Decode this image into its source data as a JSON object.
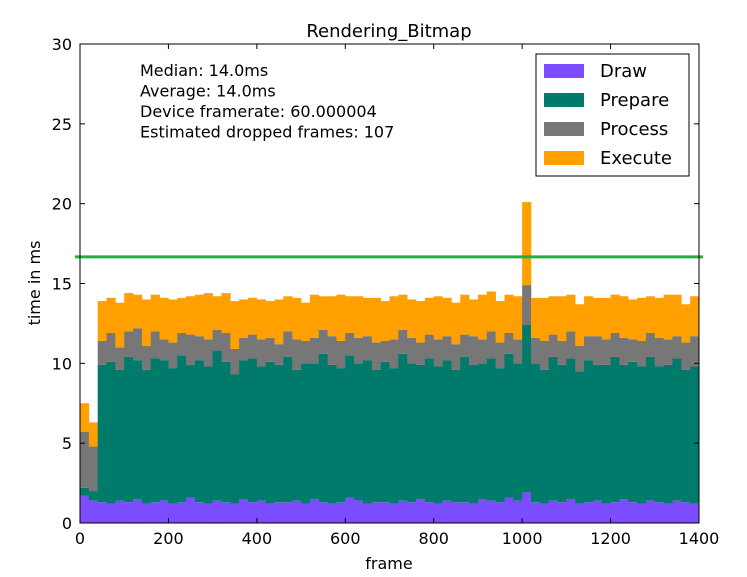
{
  "chart_data": {
    "type": "bar",
    "stacked": true,
    "title": "Rendering_Bitmap",
    "xlabel": "frame",
    "ylabel": "time in ms",
    "xlim": [
      0,
      1400
    ],
    "ylim": [
      0,
      30
    ],
    "xticks": [
      "0",
      "200",
      "400",
      "600",
      "800",
      "1000",
      "1200",
      "1400"
    ],
    "yticks": [
      "0",
      "5",
      "10",
      "15",
      "20",
      "25",
      "30"
    ],
    "grid": false,
    "legend_placement": "top-right",
    "annotations": [
      "Median: 14.0ms",
      "Average: 14.0ms",
      "Device framerate: 60.000004",
      "Estimated dropped frames: 107"
    ],
    "threshold": {
      "value": 16.67,
      "color": "#1fb045"
    },
    "frames": [
      0,
      20,
      40,
      60,
      80,
      100,
      120,
      140,
      160,
      180,
      200,
      220,
      240,
      260,
      280,
      300,
      320,
      340,
      360,
      380,
      400,
      420,
      440,
      460,
      480,
      500,
      520,
      540,
      560,
      580,
      600,
      620,
      640,
      660,
      680,
      700,
      720,
      740,
      760,
      780,
      800,
      820,
      840,
      860,
      880,
      900,
      920,
      940,
      960,
      980,
      1000,
      1020,
      1040,
      1060,
      1080,
      1100,
      1120,
      1140,
      1160,
      1180,
      1200,
      1220,
      1240,
      1260,
      1280,
      1300,
      1320,
      1340,
      1360,
      1380
    ],
    "series": [
      {
        "name": "Draw",
        "color": "#7b4dff",
        "values": [
          1.7,
          1.4,
          1.3,
          1.2,
          1.4,
          1.3,
          1.5,
          1.2,
          1.3,
          1.4,
          1.2,
          1.3,
          1.6,
          1.3,
          1.2,
          1.4,
          1.3,
          1.2,
          1.5,
          1.3,
          1.4,
          1.2,
          1.3,
          1.3,
          1.4,
          1.2,
          1.5,
          1.3,
          1.2,
          1.3,
          1.6,
          1.4,
          1.2,
          1.3,
          1.3,
          1.2,
          1.4,
          1.3,
          1.5,
          1.3,
          1.2,
          1.4,
          1.3,
          1.3,
          1.2,
          1.5,
          1.4,
          1.3,
          1.6,
          1.4,
          1.9,
          1.3,
          1.2,
          1.4,
          1.3,
          1.5,
          1.2,
          1.3,
          1.4,
          1.2,
          1.3,
          1.5,
          1.3,
          1.2,
          1.4,
          1.3,
          1.2,
          1.4,
          1.3,
          1.2
        ]
      },
      {
        "name": "Prepare",
        "color": "#007a6a",
        "values": [
          0.5,
          0.6,
          8.6,
          8.9,
          8.2,
          9.1,
          8.7,
          8.4,
          9.0,
          8.8,
          8.5,
          9.2,
          8.3,
          8.9,
          8.6,
          9.4,
          8.8,
          8.1,
          8.7,
          9.0,
          8.4,
          8.9,
          8.6,
          9.1,
          8.2,
          8.8,
          8.5,
          9.3,
          8.7,
          8.4,
          8.9,
          8.6,
          9.0,
          8.3,
          8.8,
          8.5,
          9.2,
          8.7,
          8.4,
          9.0,
          8.6,
          8.8,
          8.3,
          9.1,
          8.7,
          8.5,
          8.9,
          8.4,
          9.0,
          8.6,
          10.5,
          8.7,
          8.4,
          9.0,
          8.6,
          8.8,
          8.3,
          8.9,
          8.5,
          8.7,
          9.1,
          8.4,
          8.8,
          8.6,
          9.0,
          8.5,
          8.7,
          8.9,
          8.3,
          8.6
        ]
      },
      {
        "name": "Process",
        "color": "#777777",
        "values": [
          3.5,
          2.8,
          1.5,
          1.8,
          1.4,
          1.6,
          2.0,
          1.5,
          1.7,
          1.3,
          1.6,
          1.4,
          1.9,
          1.5,
          1.7,
          1.3,
          1.8,
          1.6,
          1.4,
          1.5,
          1.7,
          1.5,
          1.3,
          1.6,
          1.9,
          1.4,
          1.6,
          1.5,
          1.8,
          1.7,
          1.4,
          1.6,
          1.5,
          1.7,
          1.3,
          1.8,
          1.5,
          1.6,
          1.4,
          1.5,
          1.7,
          1.5,
          1.6,
          1.4,
          1.8,
          1.5,
          1.7,
          1.6,
          1.3,
          1.5,
          2.5,
          1.6,
          1.8,
          1.4,
          1.5,
          1.7,
          1.6,
          1.5,
          1.8,
          1.6,
          1.5,
          1.7,
          1.4,
          1.6,
          1.5,
          1.8,
          1.6,
          1.4,
          1.7,
          1.9
        ]
      },
      {
        "name": "Execute",
        "color": "#ffa000",
        "values": [
          1.8,
          1.5,
          2.5,
          2.2,
          2.8,
          2.4,
          2.1,
          2.9,
          2.3,
          2.6,
          2.7,
          2.2,
          2.4,
          2.6,
          2.9,
          2.1,
          2.5,
          3.0,
          2.4,
          2.3,
          2.5,
          2.3,
          2.8,
          2.2,
          2.6,
          2.4,
          2.7,
          2.1,
          2.5,
          2.9,
          2.3,
          2.6,
          2.4,
          2.8,
          2.5,
          2.7,
          2.2,
          2.4,
          2.6,
          2.3,
          2.7,
          2.4,
          2.6,
          2.5,
          2.3,
          2.8,
          2.5,
          2.6,
          2.4,
          2.7,
          5.2,
          2.5,
          2.7,
          2.4,
          2.8,
          2.3,
          2.6,
          2.5,
          2.4,
          2.6,
          2.4,
          2.6,
          2.5,
          2.7,
          2.3,
          2.5,
          2.8,
          2.6,
          2.4,
          2.5
        ]
      }
    ]
  }
}
